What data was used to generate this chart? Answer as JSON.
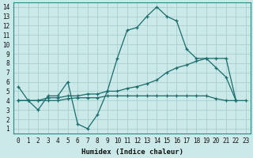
{
  "xlabel": "Humidex (Indice chaleur)",
  "bg_color": "#cce9e9",
  "grid_color": "#aacfcf",
  "line_color": "#1a6b6b",
  "xlim": [
    -0.5,
    23.5
  ],
  "ylim": [
    0.5,
    14.5
  ],
  "xticks": [
    0,
    1,
    2,
    3,
    4,
    5,
    6,
    7,
    8,
    9,
    10,
    11,
    12,
    13,
    14,
    15,
    16,
    17,
    18,
    19,
    20,
    21,
    22,
    23
  ],
  "yticks": [
    1,
    2,
    3,
    4,
    5,
    6,
    7,
    8,
    9,
    10,
    11,
    12,
    13,
    14
  ],
  "series1_x": [
    0,
    1,
    2,
    3,
    4,
    5,
    6,
    7,
    8,
    9,
    10,
    11,
    12,
    13,
    14,
    15,
    16,
    17,
    18,
    19,
    20,
    21,
    22,
    23
  ],
  "series1_y": [
    5.5,
    4.0,
    3.0,
    4.5,
    4.5,
    6.0,
    1.5,
    1.0,
    2.5,
    5.0,
    8.5,
    11.5,
    11.8,
    13.0,
    14.0,
    13.0,
    12.5,
    9.5,
    8.5,
    8.5,
    7.5,
    6.5,
    4.0,
    4.0
  ],
  "series2_x": [
    0,
    1,
    2,
    3,
    4,
    5,
    6,
    7,
    8,
    9,
    10,
    11,
    12,
    13,
    14,
    15,
    16,
    17,
    18,
    19,
    20,
    21,
    22
  ],
  "series2_y": [
    4.0,
    4.0,
    4.0,
    4.3,
    4.3,
    4.5,
    4.5,
    4.7,
    4.7,
    5.0,
    5.0,
    5.3,
    5.5,
    5.8,
    6.2,
    7.0,
    7.5,
    7.8,
    8.2,
    8.5,
    8.5,
    8.5,
    4.0
  ],
  "series3_x": [
    0,
    1,
    2,
    3,
    4,
    5,
    6,
    7,
    8,
    9,
    10,
    11,
    12,
    13,
    14,
    15,
    16,
    17,
    18,
    19,
    20,
    21,
    22
  ],
  "series3_y": [
    4.0,
    4.0,
    4.0,
    4.0,
    4.0,
    4.2,
    4.3,
    4.3,
    4.3,
    4.5,
    4.5,
    4.5,
    4.5,
    4.5,
    4.5,
    4.5,
    4.5,
    4.5,
    4.5,
    4.5,
    4.2,
    4.0,
    4.0
  ]
}
